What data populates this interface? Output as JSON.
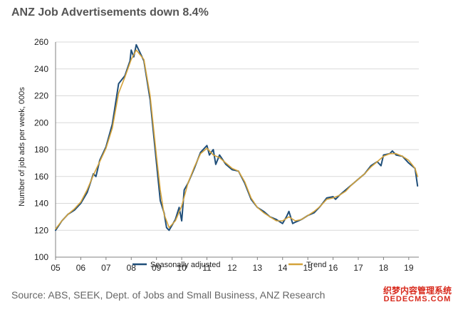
{
  "chart_data": {
    "type": "line",
    "title": "ANZ Job Advertisements down 8.4%",
    "ylabel": "Number of job ads per week, 000s",
    "xlabel": "",
    "ylim": [
      100,
      260
    ],
    "yticks": [
      100,
      120,
      140,
      160,
      180,
      200,
      220,
      240,
      260
    ],
    "xlim": [
      2005.0,
      2019.4
    ],
    "xticks": [
      {
        "value": 2005,
        "label": "05"
      },
      {
        "value": 2006,
        "label": "06"
      },
      {
        "value": 2007,
        "label": "07"
      },
      {
        "value": 2008,
        "label": "08"
      },
      {
        "value": 2009,
        "label": "09"
      },
      {
        "value": 2010,
        "label": "10"
      },
      {
        "value": 2011,
        "label": "11"
      },
      {
        "value": 2012,
        "label": "12"
      },
      {
        "value": 2013,
        "label": "13"
      },
      {
        "value": 2014,
        "label": "14"
      },
      {
        "value": 2015,
        "label": "15"
      },
      {
        "value": 2016,
        "label": "16"
      },
      {
        "value": 2017,
        "label": "17"
      },
      {
        "value": 2018,
        "label": "18"
      },
      {
        "value": 2019,
        "label": "19"
      }
    ],
    "grid": "horizontal",
    "legend_position": "bottom",
    "series": [
      {
        "name": "Seasonally adjusted",
        "color": "#1f4e79",
        "points": [
          [
            2005.0,
            120
          ],
          [
            2005.25,
            127
          ],
          [
            2005.5,
            132
          ],
          [
            2005.75,
            135
          ],
          [
            2006.0,
            140
          ],
          [
            2006.25,
            148
          ],
          [
            2006.5,
            162
          ],
          [
            2006.6,
            160
          ],
          [
            2006.75,
            172
          ],
          [
            2007.0,
            182
          ],
          [
            2007.25,
            199
          ],
          [
            2007.5,
            229
          ],
          [
            2007.75,
            235
          ],
          [
            2007.95,
            246
          ],
          [
            2008.0,
            254
          ],
          [
            2008.1,
            249
          ],
          [
            2008.2,
            258
          ],
          [
            2008.5,
            246
          ],
          [
            2008.75,
            217
          ],
          [
            2009.0,
            170
          ],
          [
            2009.15,
            142
          ],
          [
            2009.3,
            133
          ],
          [
            2009.4,
            122
          ],
          [
            2009.5,
            120
          ],
          [
            2009.75,
            128
          ],
          [
            2009.9,
            137
          ],
          [
            2010.0,
            127
          ],
          [
            2010.1,
            150
          ],
          [
            2010.25,
            155
          ],
          [
            2010.5,
            166
          ],
          [
            2010.75,
            178
          ],
          [
            2010.9,
            181
          ],
          [
            2011.0,
            183
          ],
          [
            2011.1,
            176
          ],
          [
            2011.25,
            180
          ],
          [
            2011.35,
            169
          ],
          [
            2011.5,
            176
          ],
          [
            2011.75,
            169
          ],
          [
            2012.0,
            165
          ],
          [
            2012.25,
            164
          ],
          [
            2012.5,
            155
          ],
          [
            2012.75,
            143
          ],
          [
            2013.0,
            137
          ],
          [
            2013.25,
            134
          ],
          [
            2013.5,
            130
          ],
          [
            2013.75,
            128
          ],
          [
            2014.0,
            125
          ],
          [
            2014.15,
            130
          ],
          [
            2014.25,
            134
          ],
          [
            2014.4,
            125
          ],
          [
            2014.5,
            126
          ],
          [
            2014.75,
            128
          ],
          [
            2015.0,
            131
          ],
          [
            2015.25,
            133
          ],
          [
            2015.5,
            138
          ],
          [
            2015.75,
            144
          ],
          [
            2016.0,
            145
          ],
          [
            2016.1,
            143
          ],
          [
            2016.25,
            146
          ],
          [
            2016.5,
            150
          ],
          [
            2016.75,
            154
          ],
          [
            2017.0,
            158
          ],
          [
            2017.25,
            162
          ],
          [
            2017.5,
            168
          ],
          [
            2017.75,
            171
          ],
          [
            2017.9,
            168
          ],
          [
            2018.0,
            176
          ],
          [
            2018.25,
            177
          ],
          [
            2018.35,
            179
          ],
          [
            2018.5,
            176
          ],
          [
            2018.75,
            175
          ],
          [
            2019.0,
            170
          ],
          [
            2019.25,
            166
          ],
          [
            2019.35,
            153
          ]
        ]
      },
      {
        "name": "Trend",
        "color": "#d4a23a",
        "points": [
          [
            2005.0,
            121
          ],
          [
            2005.25,
            127
          ],
          [
            2005.5,
            132
          ],
          [
            2005.75,
            136
          ],
          [
            2006.0,
            141
          ],
          [
            2006.25,
            150
          ],
          [
            2006.5,
            161
          ],
          [
            2006.75,
            171
          ],
          [
            2007.0,
            181
          ],
          [
            2007.25,
            196
          ],
          [
            2007.5,
            222
          ],
          [
            2007.75,
            234
          ],
          [
            2008.0,
            247
          ],
          [
            2008.2,
            254
          ],
          [
            2008.5,
            247
          ],
          [
            2008.75,
            220
          ],
          [
            2009.0,
            175
          ],
          [
            2009.15,
            150
          ],
          [
            2009.3,
            132
          ],
          [
            2009.5,
            122
          ],
          [
            2009.75,
            127
          ],
          [
            2010.0,
            138
          ],
          [
            2010.25,
            155
          ],
          [
            2010.5,
            167
          ],
          [
            2010.75,
            177
          ],
          [
            2011.0,
            181
          ],
          [
            2011.25,
            176
          ],
          [
            2011.5,
            174
          ],
          [
            2011.75,
            170
          ],
          [
            2012.0,
            166
          ],
          [
            2012.25,
            164
          ],
          [
            2012.5,
            156
          ],
          [
            2012.75,
            144
          ],
          [
            2013.0,
            137
          ],
          [
            2013.25,
            133
          ],
          [
            2013.5,
            130
          ],
          [
            2013.75,
            127
          ],
          [
            2014.0,
            127
          ],
          [
            2014.25,
            130
          ],
          [
            2014.5,
            127
          ],
          [
            2014.75,
            128
          ],
          [
            2015.0,
            131
          ],
          [
            2015.25,
            134
          ],
          [
            2015.5,
            138
          ],
          [
            2015.75,
            143
          ],
          [
            2016.0,
            144
          ],
          [
            2016.25,
            146
          ],
          [
            2016.5,
            149
          ],
          [
            2016.75,
            154
          ],
          [
            2017.0,
            158
          ],
          [
            2017.25,
            162
          ],
          [
            2017.5,
            167
          ],
          [
            2017.75,
            171
          ],
          [
            2018.0,
            175
          ],
          [
            2018.25,
            177
          ],
          [
            2018.5,
            177
          ],
          [
            2018.75,
            175
          ],
          [
            2019.0,
            172
          ],
          [
            2019.25,
            166
          ],
          [
            2019.35,
            160
          ]
        ]
      }
    ]
  },
  "footer": {
    "source": "Source: ABS, SEEK, Dept. of Jobs and Small Business, ANZ Research"
  },
  "watermark": {
    "line1": "织梦内容管理系统",
    "line2": "DEDECMS.COM",
    "color": "#d8291c"
  }
}
